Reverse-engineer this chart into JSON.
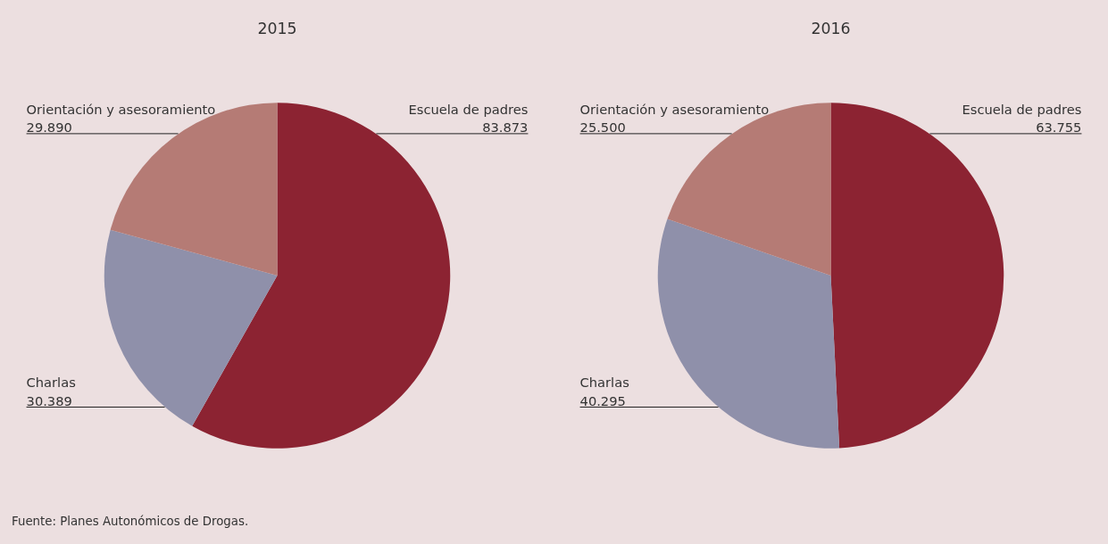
{
  "chart_data": [
    {
      "type": "pie",
      "title": "2015",
      "categories": [
        "Escuela de padres",
        "Charlas",
        "Orientación y asesoramiento"
      ],
      "values": [
        83873,
        30389,
        29890
      ],
      "value_labels": [
        "83.873",
        "30.389",
        "29.890"
      ],
      "colors": [
        "#8c2332",
        "#8f90aa",
        "#b57b75"
      ],
      "annotations": [
        "Fuente: Planes Autonómicos de Drogas."
      ]
    },
    {
      "type": "pie",
      "title": "2016",
      "categories": [
        "Escuela de padres",
        "Charlas",
        "Orientación y asesoramiento"
      ],
      "values": [
        63755,
        40295,
        25500
      ],
      "value_labels": [
        "63.755",
        "40.295",
        "25.500"
      ],
      "colors": [
        "#8c2332",
        "#8f90aa",
        "#b57b75"
      ]
    }
  ]
}
